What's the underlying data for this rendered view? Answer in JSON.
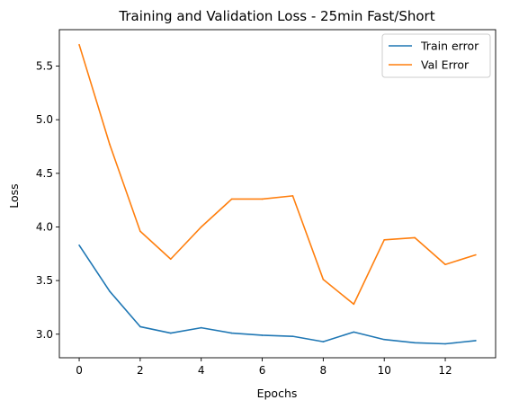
{
  "chart_data": {
    "type": "line",
    "title": "Training and Validation Loss - 25min Fast/Short",
    "xlabel": "Epochs",
    "ylabel": "Loss",
    "xlim": [
      -0.65,
      13.65
    ],
    "ylim": [
      2.78,
      5.84
    ],
    "xticks": [
      0,
      2,
      4,
      6,
      8,
      10,
      12
    ],
    "xtick_labels": [
      "0",
      "2",
      "4",
      "6",
      "8",
      "10",
      "12"
    ],
    "yticks": [
      3.0,
      3.5,
      4.0,
      4.5,
      5.0,
      5.5
    ],
    "ytick_labels": [
      "3.0",
      "3.5",
      "4.0",
      "4.5",
      "5.0",
      "5.5"
    ],
    "grid": false,
    "legend_position": "top-right",
    "x": [
      0,
      1,
      2,
      3,
      4,
      5,
      6,
      7,
      8,
      9,
      10,
      11,
      12,
      13
    ],
    "series": [
      {
        "name": "Train error",
        "color": "#1f77b4",
        "values": [
          3.83,
          3.4,
          3.07,
          3.01,
          3.06,
          3.01,
          2.99,
          2.98,
          2.93,
          3.02,
          2.95,
          2.92,
          2.91,
          2.94
        ]
      },
      {
        "name": "Val Error",
        "color": "#ff7f0e",
        "values": [
          5.7,
          4.77,
          3.96,
          3.7,
          4.0,
          4.26,
          4.26,
          4.29,
          3.51,
          3.28,
          3.88,
          3.9,
          3.65,
          3.74
        ]
      }
    ]
  }
}
